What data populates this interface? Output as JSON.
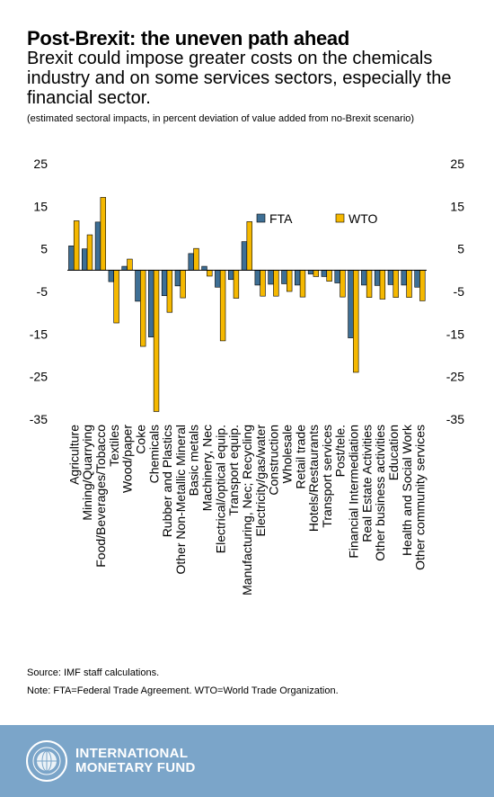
{
  "header": {
    "title": "Post-Brexit: the uneven path ahead",
    "subtitle": "Brexit could impose greater costs on the chemicals industry and on some services sectors, especially the financial sector.",
    "note": "(estimated sectoral impacts, in percent deviation of value added from no-Brexit scenario)"
  },
  "footer": {
    "source": "Source: IMF staff calculations.",
    "note": "Note: FTA=Federal Trade Agreement. WTO=World Trade Organization.",
    "org_line1": "INTERNATIONAL",
    "org_line2": "MONETARY FUND",
    "logo_icon": "imf-seal-icon",
    "background": "#7ba5c9"
  },
  "chart_data": {
    "type": "bar",
    "title": "",
    "xlabel": "",
    "ylabel": "",
    "ylim": [
      -35,
      25
    ],
    "yticks": [
      25,
      15,
      5,
      -5,
      -15,
      -25,
      -35
    ],
    "ytick_labels": [
      "25",
      "15",
      "5",
      "-5",
      "-15",
      "-25",
      "-35"
    ],
    "grid": false,
    "legend_position": "top-right",
    "categories": [
      "Agriculture",
      "Mining/Quarrying",
      "Food/Beverages/Tobacco",
      "Textiles",
      "Wood/paper",
      "Coke",
      "Chemicals",
      "Rubber and Plastics",
      "Other Non-Metallic Mineral",
      "Basic metals",
      "Machinery, Nec",
      "Electrical/optical equip.",
      "Transport equip.",
      "Manufacturing, Nec; Recycling",
      "Electricity/gas/water",
      "Construction",
      "Wholesale",
      "Retail trade",
      "Hotels/Restaurants",
      "Transport services",
      "Post/tele.",
      "Financial Intermediation",
      "Real Estate Activities",
      "Other business activities",
      "Education",
      "Health and Social Work",
      "Other community services"
    ],
    "series": [
      {
        "name": "FTA",
        "color": "#3e6f95",
        "values": [
          5.7,
          5.0,
          11.3,
          -2.7,
          0.9,
          -7.3,
          -15.7,
          -6.0,
          -3.7,
          3.9,
          0.9,
          -4.0,
          -2.2,
          6.7,
          -3.5,
          -3.3,
          -3.2,
          -3.5,
          -0.9,
          -1.5,
          -3.0,
          -15.9,
          -3.5,
          -3.6,
          -3.4,
          -3.5,
          -4.0
        ]
      },
      {
        "name": "WTO",
        "color": "#f5b800",
        "values": [
          11.6,
          8.3,
          17.1,
          -12.4,
          2.6,
          -17.9,
          -33.2,
          -9.9,
          -6.5,
          5.1,
          -1.4,
          -16.6,
          -6.6,
          11.4,
          -6.1,
          -6.1,
          -5.0,
          -6.3,
          -1.5,
          -2.6,
          -6.3,
          -24.0,
          -6.4,
          -6.8,
          -6.4,
          -6.4,
          -7.2
        ]
      }
    ]
  }
}
